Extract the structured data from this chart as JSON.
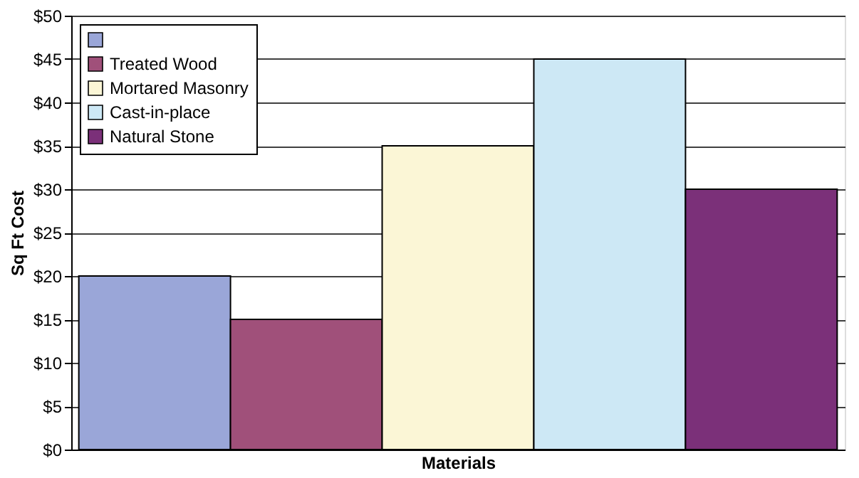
{
  "chart_data": {
    "type": "bar",
    "categories": [
      null
    ],
    "xlabel": "Materials",
    "ylabel": "Sq Ft Cost",
    "series": [
      {
        "color": "#9aa6d8",
        "values": [
          20
        ]
      },
      {
        "name": "Treated Wood",
        "color": "#a0507a",
        "values": [
          15
        ]
      },
      {
        "name": "Mortared Masonry",
        "color": "#fbf6d6",
        "values": [
          35
        ]
      },
      {
        "name": "Cast-in-place",
        "color": "#cde8f5",
        "values": [
          45
        ]
      },
      {
        "name": "Natural Stone",
        "color": "#7b3079",
        "values": [
          30
        ]
      }
    ],
    "ylim": [
      0,
      50
    ],
    "yticks": [
      {
        "value": 0,
        "label": "$0"
      },
      {
        "value": 5,
        "label": "$5"
      },
      {
        "value": 10,
        "label": "$10"
      },
      {
        "value": 15,
        "label": "$15"
      },
      {
        "value": 20,
        "label": "$20"
      },
      {
        "value": 25,
        "label": "$25"
      },
      {
        "value": 30,
        "label": "$30"
      },
      {
        "value": 35,
        "label": "$35"
      },
      {
        "value": 40,
        "label": "$40"
      },
      {
        "value": 45,
        "label": "$45"
      },
      {
        "value": 50,
        "label": "$50"
      }
    ],
    "grid": "y",
    "legend": "top left"
  }
}
